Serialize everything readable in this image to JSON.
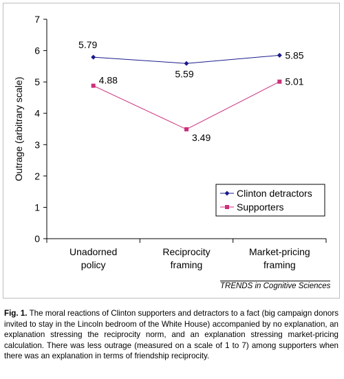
{
  "chart_data": {
    "type": "line",
    "categories": [
      [
        "Unadorned",
        "policy"
      ],
      [
        "Reciprocity",
        "framing"
      ],
      [
        "Market-pricing",
        "framing"
      ]
    ],
    "ylabel": "Outrage (arbitrary scale)",
    "ylim": [
      0,
      7
    ],
    "yticks": [
      "0",
      "1",
      "2",
      "3",
      "4",
      "5",
      "6",
      "7"
    ],
    "grid": false,
    "legend_position": "right",
    "series": [
      {
        "name": "Clinton detractors",
        "marker": "diamond",
        "color": "#1a1a8c",
        "values": [
          5.79,
          5.59,
          5.85
        ],
        "labels": [
          "5.79",
          "5.59",
          "5.85"
        ]
      },
      {
        "name": "Supporters",
        "marker": "square",
        "color": "#cc2f7a",
        "values": [
          4.88,
          3.49,
          5.01
        ],
        "labels": [
          "4.88",
          "3.49",
          "5.01"
        ]
      }
    ]
  },
  "source": "TRENDS in Cognitive Sciences",
  "caption": {
    "label": "Fig. 1.",
    "text": " The moral reactions of Clinton supporters and detractors to a fact (big campaign donors invited to stay in the Lincoln bedroom of the White House) accompanied by no explanation, an explanation stressing the reciprocity norm, and an explanation stressing market-pricing calculation. There was less outrage (measured on a scale of 1 to 7) among supporters when there was an explanation in terms of friendship reciprocity."
  }
}
